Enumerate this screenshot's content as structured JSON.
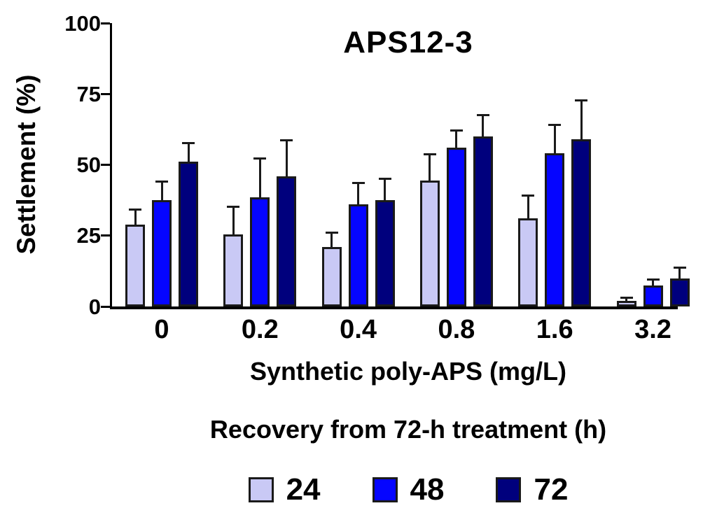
{
  "chart_data": {
    "type": "bar",
    "title": "APS12-3",
    "ylabel": "Settlement (%)",
    "xlabel": "Synthetic poly-APS (mg/L)",
    "legend_title": "Recovery from 72-h treatment (h)",
    "legend_position": "bottom",
    "grid": false,
    "ylim": [
      0,
      100
    ],
    "yticks": [
      0,
      25,
      50,
      75,
      100
    ],
    "categories": [
      "0",
      "0.2",
      "0.4",
      "0.8",
      "1.6",
      "3.2"
    ],
    "series": [
      {
        "name": "24",
        "color": "#C9C9F5",
        "values": [
          29,
          25.5,
          21,
          44.5,
          31,
          2
        ],
        "errors_plus": [
          5.5,
          10,
          5.5,
          9.5,
          8.5,
          1.5
        ]
      },
      {
        "name": "48",
        "color": "#0505FF",
        "values": [
          37.5,
          38.5,
          36,
          56,
          54,
          7.5
        ],
        "errors_plus": [
          7,
          14,
          8,
          6.5,
          10.5,
          2.5
        ]
      },
      {
        "name": "72",
        "color": "#00007D",
        "values": [
          51,
          46,
          37.5,
          60,
          59,
          10
        ],
        "errors_plus": [
          7,
          13,
          8,
          8,
          14,
          4
        ]
      }
    ],
    "bar_border_color": "#1a1a1a",
    "error_bar_color": "#1a1a1a"
  }
}
